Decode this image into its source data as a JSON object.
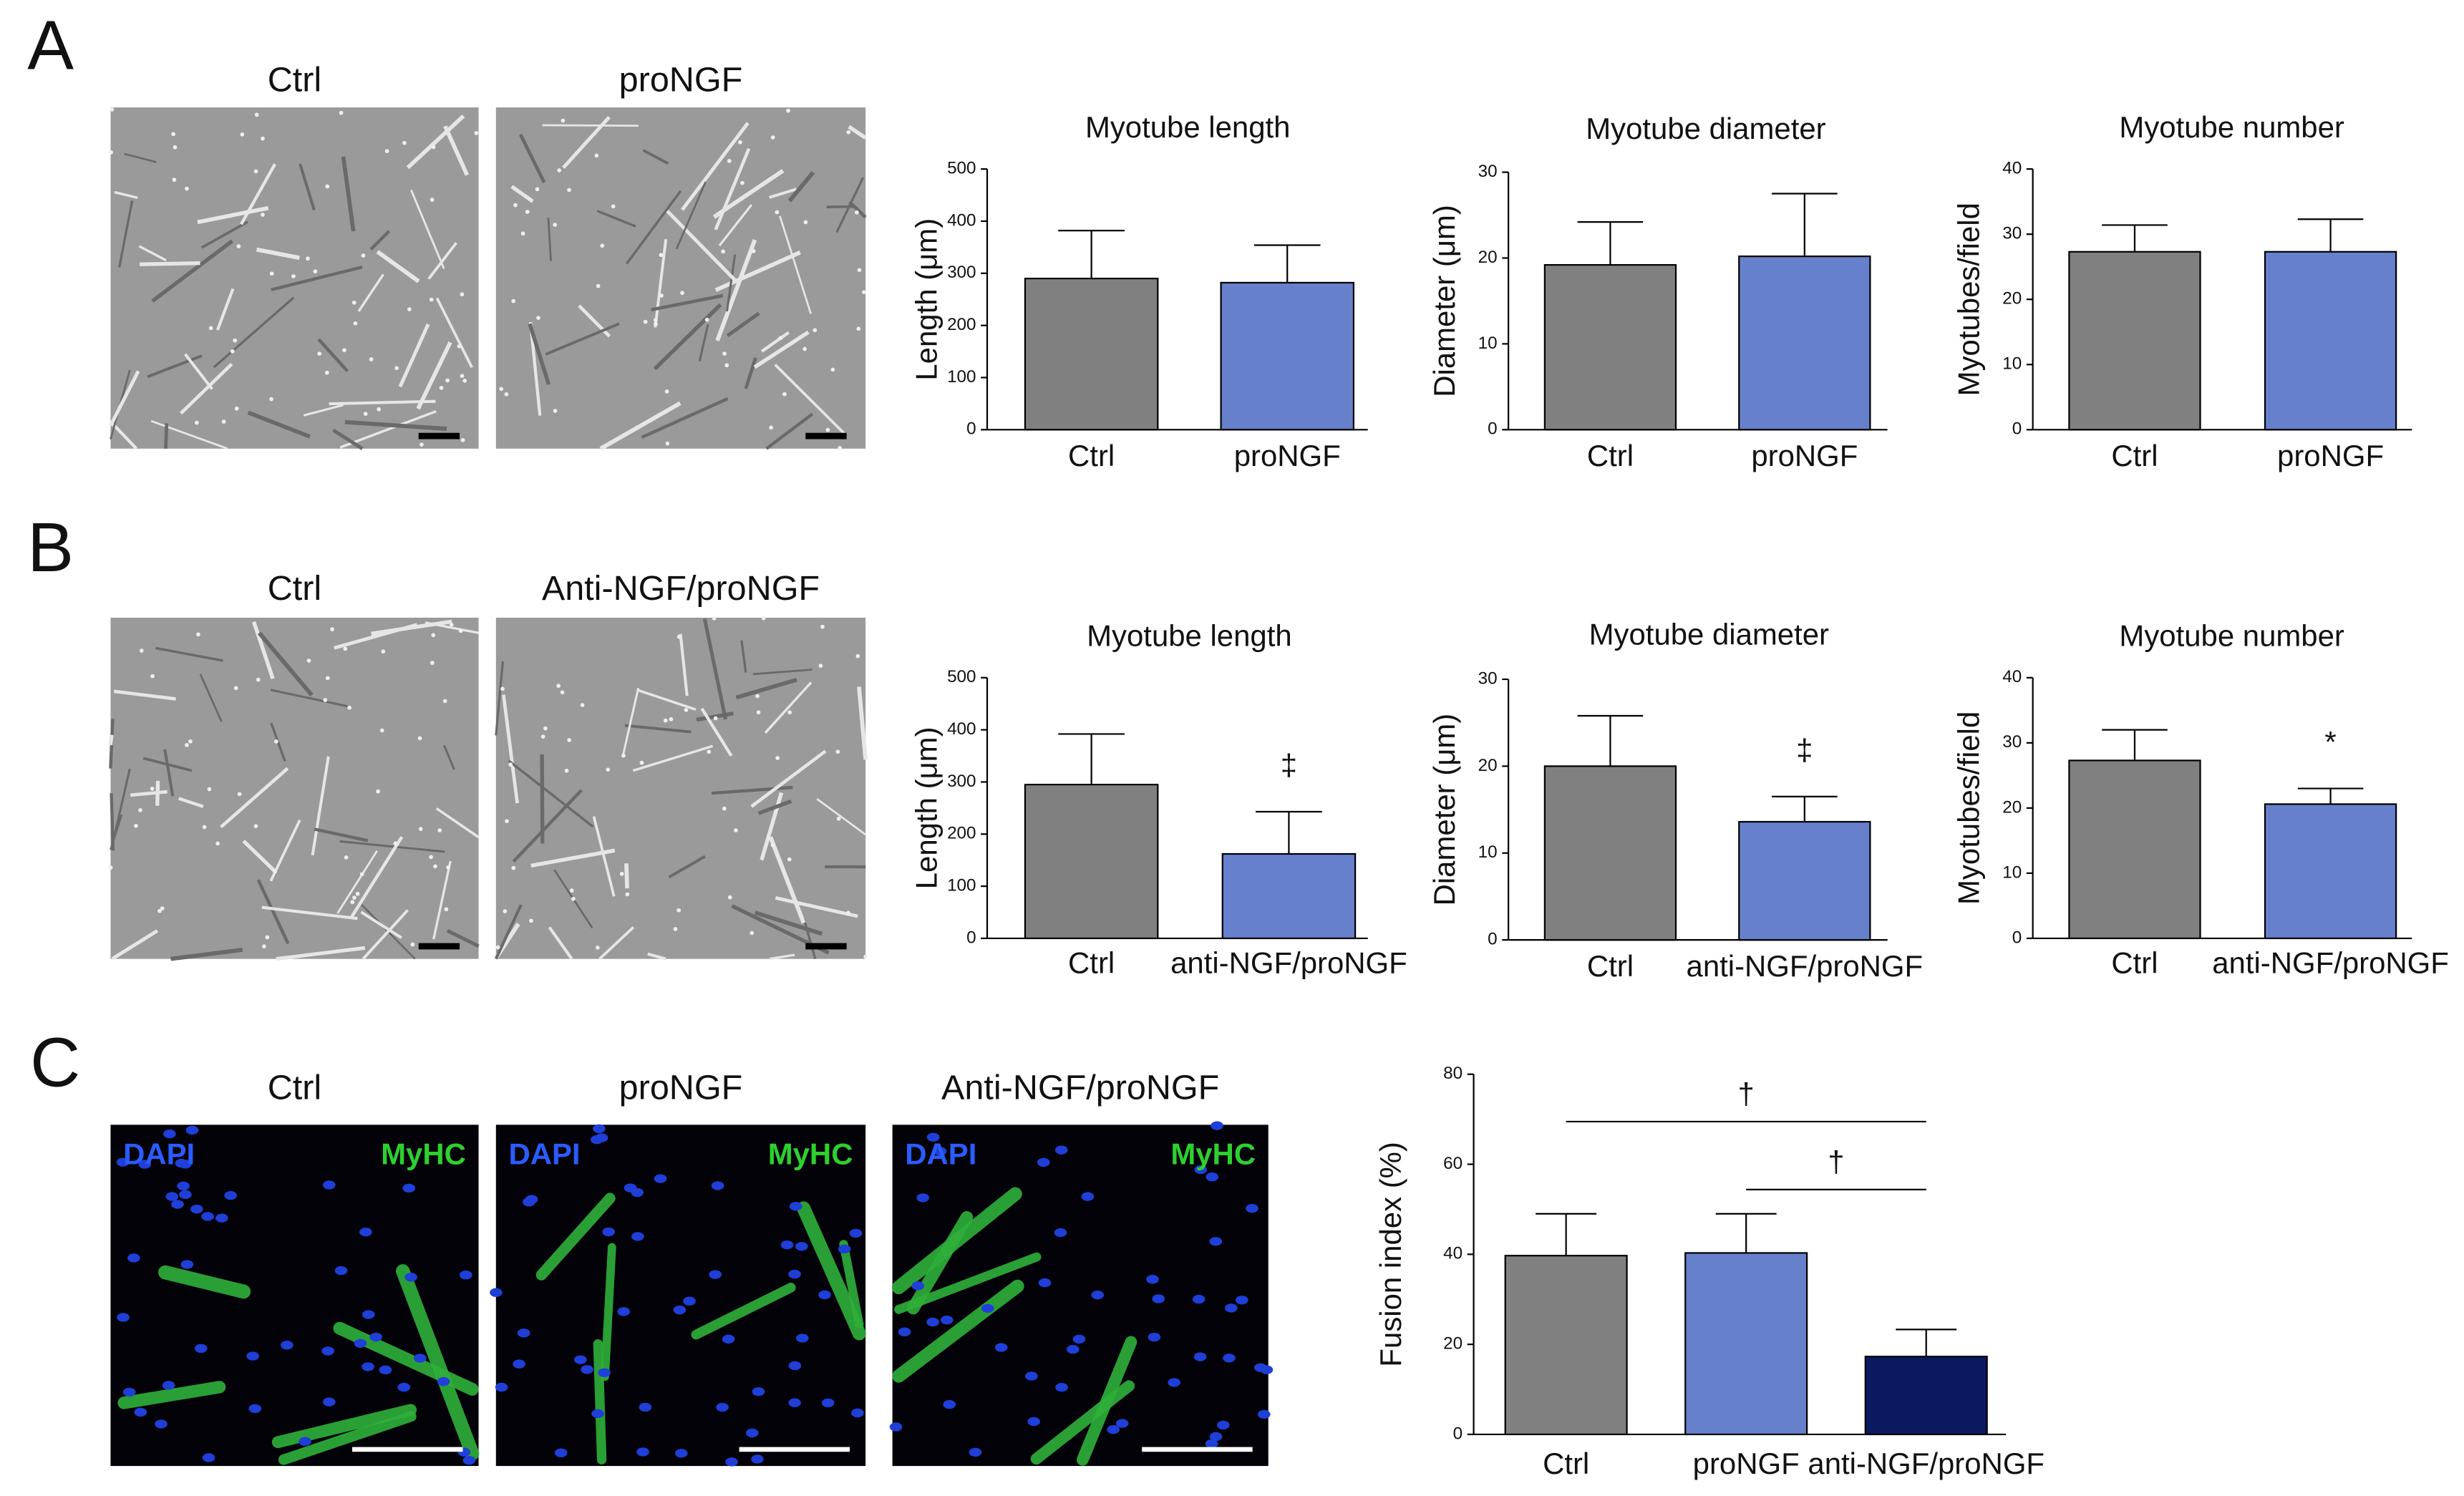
{
  "figure": {
    "panel_labels": [
      "A",
      "B",
      "C"
    ],
    "rows": [
      {
        "captions": [
          "Ctrl",
          "proNGF"
        ]
      },
      {
        "captions": [
          "Ctrl",
          "Anti-NGF/proNGF"
        ]
      },
      {
        "captions": [
          "Ctrl",
          "proNGF",
          "Anti-NGF/proNGF"
        ],
        "stain_labels": [
          "DAPI",
          "MyHC"
        ]
      }
    ]
  },
  "chart_data": [
    {
      "type": "bar",
      "title": "Myotube length",
      "ylabel": "Length (μm)",
      "categories": [
        "Ctrl",
        "proNGF"
      ],
      "values": [
        290,
        282
      ],
      "errors": [
        92,
        72
      ],
      "colors": [
        "#808080",
        "#6680cc"
      ],
      "ylim": [
        0,
        500
      ],
      "yticks": [
        0,
        100,
        200,
        300,
        400,
        500
      ]
    },
    {
      "type": "bar",
      "title": "Myotube diameter",
      "ylabel": "Diameter (μm)",
      "categories": [
        "Ctrl",
        "proNGF"
      ],
      "values": [
        19.2,
        20.2
      ],
      "errors": [
        5.0,
        7.3
      ],
      "colors": [
        "#808080",
        "#6680cc"
      ],
      "ylim": [
        0,
        30
      ],
      "yticks": [
        0,
        10,
        20,
        30
      ]
    },
    {
      "type": "bar",
      "title": "Myotube number",
      "ylabel": "Myotubes/field",
      "categories": [
        "Ctrl",
        "proNGF"
      ],
      "values": [
        27.3,
        27.3
      ],
      "errors": [
        4.1,
        5.0
      ],
      "colors": [
        "#808080",
        "#6680cc"
      ],
      "ylim": [
        0,
        40
      ],
      "yticks": [
        0,
        10,
        20,
        30,
        40
      ]
    },
    {
      "type": "bar",
      "title": "Myotube length",
      "ylabel": "Length (μm)",
      "categories": [
        "Ctrl",
        "anti-NGF/proNGF"
      ],
      "values": [
        295,
        162
      ],
      "errors": [
        97,
        81
      ],
      "bar_labels": [
        null,
        "‡"
      ],
      "colors": [
        "#808080",
        "#6680cc"
      ],
      "ylim": [
        0,
        500
      ],
      "yticks": [
        0,
        100,
        200,
        300,
        400,
        500
      ]
    },
    {
      "type": "bar",
      "title": "Myotube diameter",
      "ylabel": "Diameter (μm)",
      "categories": [
        "Ctrl",
        "anti-NGF/proNGF"
      ],
      "values": [
        20.0,
        13.6
      ],
      "errors": [
        5.8,
        2.9
      ],
      "bar_labels": [
        null,
        "‡"
      ],
      "colors": [
        "#808080",
        "#6680cc"
      ],
      "ylim": [
        0,
        30
      ],
      "yticks": [
        0,
        10,
        20,
        30
      ]
    },
    {
      "type": "bar",
      "title": "Myotube number",
      "ylabel": "Myotubes/field",
      "categories": [
        "Ctrl",
        "anti-NGF/proNGF"
      ],
      "values": [
        27.3,
        20.6
      ],
      "errors": [
        4.7,
        2.4
      ],
      "bar_labels": [
        null,
        "*"
      ],
      "colors": [
        "#808080",
        "#6680cc"
      ],
      "ylim": [
        0,
        40
      ],
      "yticks": [
        0,
        10,
        20,
        30,
        40
      ]
    },
    {
      "type": "bar",
      "ylabel": "Fusion index (%)",
      "categories": [
        "Ctrl",
        "proNGF",
        "anti-NGF/proNGF"
      ],
      "values": [
        39.7,
        40.3,
        17.3
      ],
      "errors": [
        9.3,
        8.7,
        6.0
      ],
      "colors": [
        "#808080",
        "#6680cc",
        "#0b1a5e"
      ],
      "ylim": [
        0,
        80
      ],
      "yticks": [
        0,
        20,
        40,
        60,
        80
      ],
      "comparisons": [
        {
          "label": "†",
          "from": "Ctrl",
          "to": "anti-NGF/proNGF"
        },
        {
          "label": "†",
          "from": "proNGF",
          "to": "anti-NGF/proNGF"
        }
      ]
    }
  ]
}
